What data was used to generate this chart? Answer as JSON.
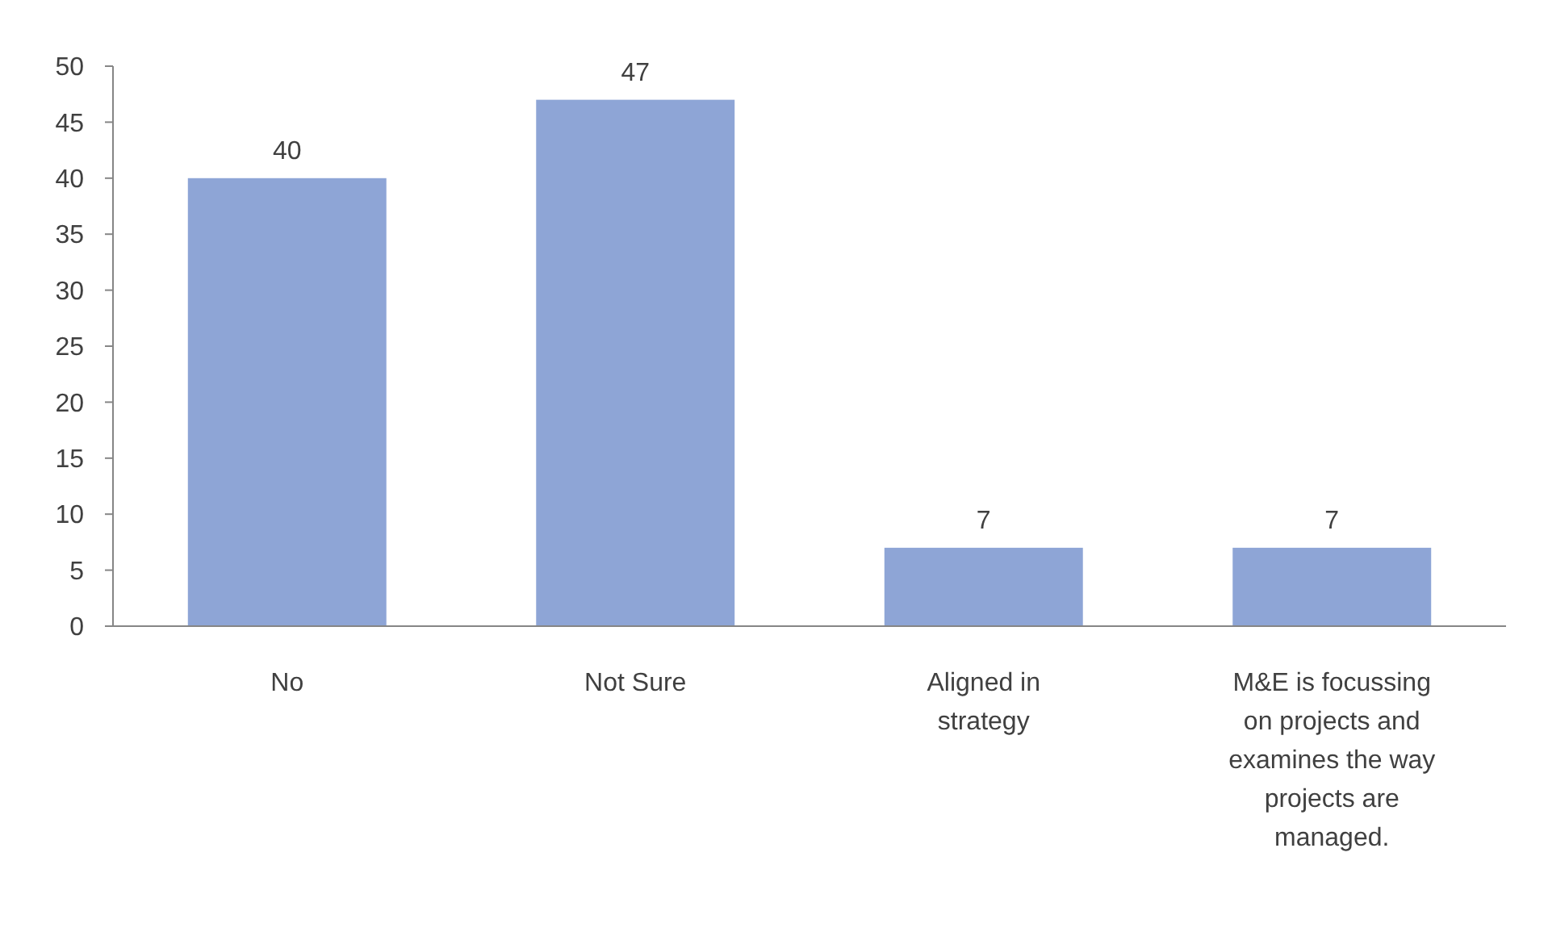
{
  "chart_data": {
    "type": "bar",
    "categories": [
      "No",
      "Not Sure",
      "Aligned in strategy",
      "M&E is focussing on projects and examines the way projects are managed."
    ],
    "values": [
      40,
      47,
      7,
      7
    ],
    "color": "#8ea5d6",
    "ylim": [
      0,
      50
    ],
    "yticks": [
      0,
      5,
      10,
      15,
      20,
      25,
      30,
      35,
      40,
      45,
      50
    ],
    "grid": false,
    "data_labels": true
  }
}
